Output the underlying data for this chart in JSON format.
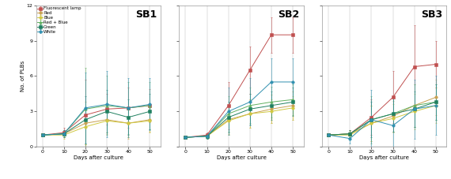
{
  "subplots": [
    "SB1",
    "SB2",
    "SB3"
  ],
  "x": [
    0,
    10,
    20,
    30,
    40,
    50
  ],
  "series": [
    {
      "label": "Fluorescent lamp",
      "color": "#c05050",
      "marker": "s",
      "marker_face": "#c05050",
      "sb1_y": [
        1.0,
        1.2,
        2.7,
        3.2,
        3.3,
        3.5
      ],
      "sb1_err": [
        0.05,
        0.4,
        3.0,
        1.3,
        1.7,
        1.4
      ],
      "sb2_y": [
        0.8,
        1.0,
        3.5,
        6.5,
        9.5,
        9.5
      ],
      "sb2_err": [
        0.05,
        0.2,
        2.0,
        2.0,
        1.5,
        1.5
      ],
      "sb3_y": [
        1.0,
        1.1,
        2.5,
        4.2,
        6.8,
        7.0
      ],
      "sb3_err": [
        0.05,
        0.3,
        1.5,
        2.2,
        3.5,
        2.0
      ]
    },
    {
      "label": "Red",
      "color": "#c8a050",
      "marker": "o",
      "marker_face": "#c8a050",
      "sb1_y": [
        1.0,
        1.1,
        2.0,
        2.3,
        2.0,
        2.3
      ],
      "sb1_err": [
        0.05,
        0.3,
        1.8,
        1.2,
        1.3,
        1.0
      ],
      "sb2_y": [
        0.8,
        0.9,
        2.3,
        2.8,
        3.2,
        3.5
      ],
      "sb2_err": [
        0.05,
        0.2,
        1.2,
        1.2,
        1.2,
        1.2
      ],
      "sb3_y": [
        1.0,
        1.1,
        2.0,
        2.6,
        3.5,
        4.2
      ],
      "sb3_err": [
        0.05,
        0.3,
        1.5,
        1.3,
        1.8,
        1.5
      ]
    },
    {
      "label": "Blue",
      "color": "#d0c840",
      "marker": "o",
      "marker_face": "#d0c840",
      "sb1_y": [
        1.0,
        1.0,
        1.7,
        2.2,
        2.0,
        2.2
      ],
      "sb1_err": [
        0.05,
        0.3,
        1.5,
        1.0,
        1.2,
        1.0
      ],
      "sb2_y": [
        0.8,
        0.9,
        2.2,
        2.8,
        3.0,
        3.3
      ],
      "sb2_err": [
        0.05,
        0.2,
        1.2,
        1.2,
        1.0,
        1.0
      ],
      "sb3_y": [
        1.0,
        1.0,
        2.0,
        2.4,
        3.0,
        3.5
      ],
      "sb3_err": [
        0.05,
        0.3,
        1.5,
        1.2,
        1.5,
        1.5
      ]
    },
    {
      "label": "Red + Blue",
      "color": "#60b060",
      "marker": "^",
      "marker_face": "#60b060",
      "sb1_y": [
        1.0,
        1.1,
        3.2,
        3.5,
        3.3,
        3.5
      ],
      "sb1_err": [
        0.05,
        0.3,
        3.5,
        2.5,
        2.2,
        2.0
      ],
      "sb2_y": [
        0.8,
        0.9,
        2.8,
        3.5,
        3.8,
        4.0
      ],
      "sb2_err": [
        0.05,
        0.2,
        1.5,
        1.5,
        1.3,
        1.3
      ],
      "sb3_y": [
        1.0,
        1.1,
        2.3,
        2.8,
        3.5,
        3.8
      ],
      "sb3_err": [
        0.05,
        0.3,
        2.0,
        1.5,
        1.8,
        1.5
      ]
    },
    {
      "label": "Green",
      "color": "#208060",
      "marker": "s",
      "marker_face": "#208060",
      "sb1_y": [
        1.0,
        1.1,
        2.3,
        3.0,
        2.5,
        3.0
      ],
      "sb1_err": [
        0.05,
        0.3,
        2.0,
        1.8,
        1.5,
        1.5
      ],
      "sb2_y": [
        0.8,
        0.9,
        2.5,
        3.2,
        3.5,
        3.8
      ],
      "sb2_err": [
        0.05,
        0.2,
        1.3,
        1.3,
        1.2,
        1.2
      ],
      "sb3_y": [
        1.0,
        1.1,
        2.3,
        2.8,
        3.2,
        3.8
      ],
      "sb3_err": [
        0.05,
        0.3,
        1.5,
        1.5,
        1.5,
        1.5
      ]
    },
    {
      "label": "White",
      "color": "#3090b0",
      "marker": "o",
      "marker_face": "#3090b0",
      "sb1_y": [
        1.0,
        1.1,
        3.3,
        3.6,
        3.3,
        3.6
      ],
      "sb1_err": [
        0.05,
        0.3,
        3.0,
        2.8,
        2.5,
        2.2
      ],
      "sb2_y": [
        0.8,
        0.9,
        3.0,
        3.8,
        5.5,
        5.5
      ],
      "sb2_err": [
        0.05,
        0.2,
        2.0,
        2.0,
        2.0,
        2.0
      ],
      "sb3_y": [
        1.0,
        0.7,
        2.3,
        1.8,
        3.2,
        3.5
      ],
      "sb3_err": [
        0.05,
        0.4,
        2.5,
        2.5,
        2.5,
        2.5
      ]
    }
  ],
  "ylim": [
    0,
    12
  ],
  "yticks": [
    0,
    3,
    6,
    9,
    12
  ],
  "xlabel": "Days after culture",
  "ylabel": "No. of PLBs",
  "bg_color": "#ffffff",
  "plot_bg": "#ffffff",
  "sb_fontsize": 9,
  "label_fontsize": 5,
  "tick_fontsize": 4.5,
  "legend_fontsize": 4,
  "marker_size": 2.5,
  "line_width": 0.7,
  "capsize": 1.0,
  "elinewidth": 0.4
}
